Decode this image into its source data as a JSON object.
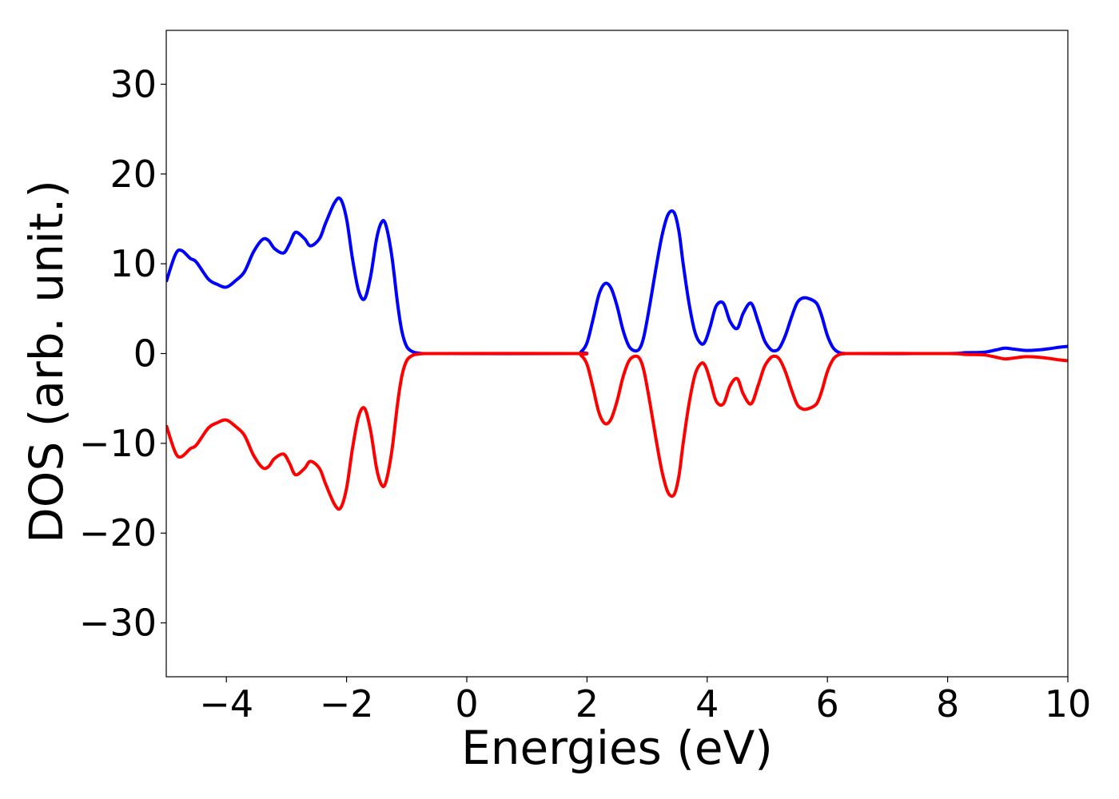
{
  "chart_data": {
    "type": "line",
    "title": "",
    "xlabel": "Energies (eV)",
    "ylabel": "DOS (arb. unit.)",
    "xlim": [
      -5,
      10
    ],
    "ylim": [
      -36,
      36
    ],
    "xticks": [
      -4,
      -2,
      0,
      2,
      4,
      6,
      8,
      10
    ],
    "xtick_labels": [
      "−4",
      "−2",
      "0",
      "2",
      "4",
      "6",
      "8",
      "10"
    ],
    "yticks": [
      30,
      20,
      10,
      0,
      -10,
      -20,
      -30
    ],
    "ytick_labels": [
      "30",
      "20",
      "10",
      "0",
      "−10",
      "−20",
      "−30"
    ],
    "grid": false,
    "legend": "none",
    "series": [
      {
        "color": "#0000ff",
        "x": [
          -5.0,
          -4.85,
          -4.75,
          -4.6,
          -4.5,
          -4.3,
          -4.15,
          -4.0,
          -3.85,
          -3.7,
          -3.55,
          -3.4,
          -3.3,
          -3.2,
          -3.05,
          -2.95,
          -2.85,
          -2.7,
          -2.6,
          -2.45,
          -2.35,
          -2.2,
          -2.1,
          -2.0,
          -1.9,
          -1.8,
          -1.7,
          -1.6,
          -1.5,
          -1.42,
          -1.35,
          -1.25,
          -1.15,
          -1.08,
          -1.0,
          -0.9,
          -0.8,
          -0.7,
          -0.6,
          -0.5,
          1.8,
          1.9,
          2.0,
          2.1,
          2.2,
          2.3,
          2.4,
          2.5,
          2.6,
          2.7,
          2.8,
          2.88,
          2.95,
          3.05,
          3.15,
          3.25,
          3.35,
          3.45,
          3.53,
          3.6,
          3.7,
          3.8,
          3.9,
          3.97,
          4.05,
          4.15,
          4.27,
          4.38,
          4.5,
          4.6,
          4.73,
          4.85,
          4.95,
          5.05,
          5.12,
          5.2,
          5.3,
          5.4,
          5.5,
          5.6,
          5.7,
          5.82,
          5.9,
          6.0,
          6.1,
          6.2,
          6.3,
          6.4,
          8.0,
          8.3,
          8.6,
          8.8,
          8.95,
          9.1,
          9.3,
          9.5,
          9.7,
          9.85,
          10.0
        ],
        "y": [
          8.0,
          11.0,
          11.5,
          10.6,
          10.2,
          8.3,
          7.7,
          7.4,
          8.1,
          9.1,
          11.3,
          12.7,
          12.6,
          11.7,
          11.2,
          12.2,
          13.5,
          12.8,
          12.0,
          12.8,
          14.5,
          16.8,
          17.2,
          15.0,
          10.5,
          7.0,
          6.1,
          8.6,
          12.8,
          14.6,
          14.4,
          11.0,
          5.5,
          2.5,
          0.8,
          0.2,
          0.05,
          0.0,
          0.0,
          0.0,
          0.0,
          0.2,
          1.2,
          3.8,
          6.6,
          7.8,
          7.3,
          5.3,
          2.6,
          0.8,
          0.3,
          0.6,
          2.0,
          5.6,
          9.6,
          13.2,
          15.5,
          15.7,
          13.6,
          10.0,
          5.5,
          2.3,
          1.1,
          1.4,
          3.0,
          5.3,
          5.6,
          3.6,
          2.8,
          4.5,
          5.6,
          3.5,
          1.5,
          0.5,
          0.3,
          0.6,
          2.0,
          4.0,
          5.7,
          6.2,
          6.1,
          5.6,
          4.3,
          2.0,
          0.6,
          0.1,
          0.0,
          0.0,
          0.0,
          0.1,
          0.15,
          0.4,
          0.6,
          0.5,
          0.35,
          0.4,
          0.55,
          0.7,
          0.8
        ]
      },
      {
        "color": "#ff0000",
        "x": [
          -5.0,
          -4.85,
          -4.75,
          -4.6,
          -4.5,
          -4.3,
          -4.15,
          -4.0,
          -3.85,
          -3.7,
          -3.55,
          -3.4,
          -3.3,
          -3.2,
          -3.05,
          -2.95,
          -2.85,
          -2.7,
          -2.6,
          -2.45,
          -2.35,
          -2.2,
          -2.1,
          -2.0,
          -1.9,
          -1.8,
          -1.7,
          -1.6,
          -1.5,
          -1.42,
          -1.35,
          -1.25,
          -1.15,
          -1.08,
          -1.0,
          -0.9,
          -0.8,
          -0.7,
          -0.6,
          -0.5,
          1.8,
          1.9,
          2.0,
          2.1,
          2.2,
          2.3,
          2.4,
          2.5,
          2.6,
          2.7,
          2.8,
          2.88,
          2.95,
          3.05,
          3.15,
          3.25,
          3.35,
          3.45,
          3.53,
          3.6,
          3.7,
          3.8,
          3.9,
          3.97,
          4.05,
          4.15,
          4.27,
          4.38,
          4.5,
          4.6,
          4.73,
          4.85,
          4.95,
          5.05,
          5.12,
          5.2,
          5.3,
          5.4,
          5.5,
          5.6,
          5.7,
          5.82,
          5.9,
          6.0,
          6.1,
          6.2,
          6.3,
          6.4,
          8.0,
          8.3,
          8.6,
          8.8,
          8.95,
          9.1,
          9.3,
          9.5,
          9.7,
          9.85,
          10.0
        ],
        "y": [
          -8.0,
          -11.0,
          -11.5,
          -10.6,
          -10.2,
          -8.3,
          -7.7,
          -7.4,
          -8.1,
          -9.1,
          -11.3,
          -12.7,
          -12.6,
          -11.7,
          -11.2,
          -12.2,
          -13.5,
          -12.8,
          -12.0,
          -12.8,
          -14.5,
          -16.8,
          -17.2,
          -15.0,
          -10.5,
          -7.0,
          -6.1,
          -8.6,
          -12.8,
          -14.6,
          -14.4,
          -11.0,
          -5.5,
          -2.5,
          -0.8,
          -0.2,
          -0.05,
          0.0,
          0.0,
          0.0,
          0.0,
          -0.2,
          -1.2,
          -3.8,
          -6.6,
          -7.8,
          -7.3,
          -5.3,
          -2.6,
          -0.8,
          -0.3,
          -0.6,
          -2.0,
          -5.6,
          -9.6,
          -13.2,
          -15.5,
          -15.7,
          -13.6,
          -10.0,
          -5.5,
          -2.3,
          -1.1,
          -1.4,
          -3.0,
          -5.3,
          -5.6,
          -3.6,
          -2.8,
          -4.5,
          -5.6,
          -3.5,
          -1.5,
          -0.5,
          -0.3,
          -0.6,
          -2.0,
          -4.0,
          -5.7,
          -6.2,
          -6.1,
          -5.6,
          -4.3,
          -2.0,
          -0.6,
          -0.1,
          0.0,
          0.0,
          0.0,
          -0.1,
          -0.15,
          -0.4,
          -0.6,
          -0.5,
          -0.35,
          -0.4,
          -0.55,
          -0.7,
          -0.8
        ]
      }
    ]
  }
}
